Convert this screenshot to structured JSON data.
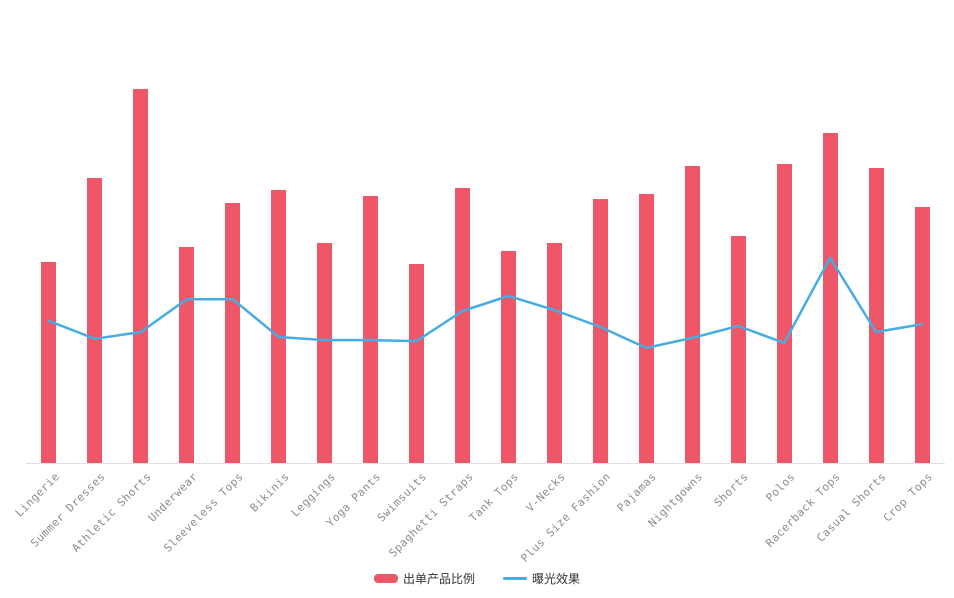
{
  "legend": {
    "items": [
      {
        "label": "出单产品比例",
        "type": "bar",
        "color": "#ee5767"
      },
      {
        "label": "曝光效果",
        "type": "line",
        "color": "#47ace2"
      }
    ]
  },
  "chart_data": {
    "type": "bar",
    "title": "",
    "xlabel": "",
    "ylabel": "",
    "categories": [
      "Lingerie",
      "Summer Dresses",
      "Athletic Shorts",
      "Underwear",
      "Sleeveless Tops",
      "Bikinis",
      "Leggings",
      "Yoga Pants",
      "Swimsuits",
      "Spaghetti Straps",
      "Tank Tops",
      "V-Necks",
      "Plus Size Fashion",
      "Pajamas",
      "Nightgowns",
      "Shorts",
      "Polos",
      "Racerback Tops",
      "Casual Shorts",
      "Crop Tops"
    ],
    "series": [
      {
        "name": "出单产品比例",
        "type": "bar",
        "color": "#ee5767",
        "values": [
          44.2,
          62.6,
          82.2,
          47.5,
          57.1,
          60.0,
          48.4,
          58.7,
          43.7,
          60.4,
          46.6,
          48.4,
          58.0,
          59.1,
          65.3,
          49.9,
          65.7,
          72.5,
          64.8,
          56.3
        ]
      },
      {
        "name": "曝光效果",
        "type": "line",
        "color": "#47ace2",
        "values": [
          31.2,
          27.3,
          28.8,
          36.0,
          36.0,
          27.7,
          27.0,
          27.0,
          26.8,
          33.4,
          36.7,
          33.6,
          29.9,
          25.3,
          27.5,
          30.1,
          26.4,
          45.1,
          28.8,
          30.5
        ]
      }
    ],
    "ylim": [
      0,
      100
    ],
    "y_axis_visible": false,
    "grid": false,
    "legend_position": "bottom",
    "x_label_rotation": 45,
    "axis_line_color": "#e0e0e0",
    "x_label_color": "#8c8c8c"
  }
}
